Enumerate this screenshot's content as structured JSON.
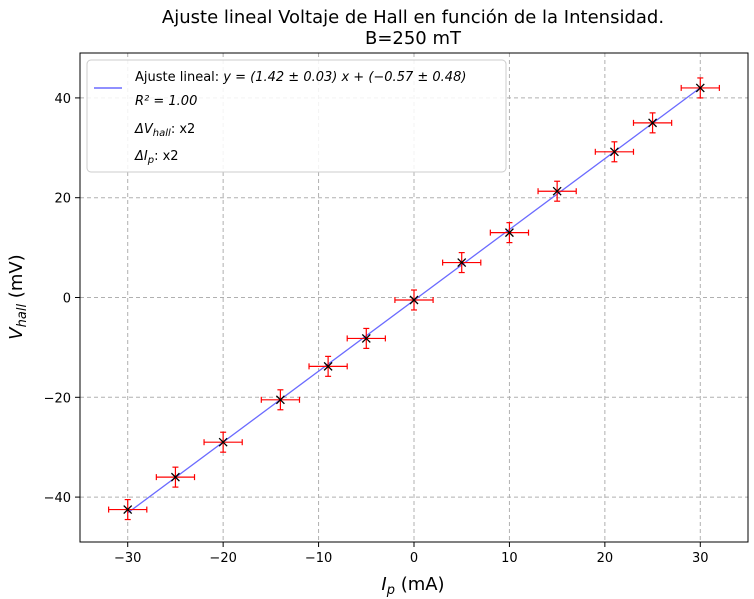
{
  "chart_data": {
    "type": "scatter",
    "title_line1": "Ajuste lineal Voltaje de Hall en función de la Intensidad.",
    "title_line2": "B=250 mT",
    "xlabel_main": "I",
    "xlabel_sub": "p",
    "xlabel_unit": " (mA)",
    "ylabel_main": "V",
    "ylabel_sub": "hall",
    "ylabel_unit": " (mV)",
    "xlim": [
      -35,
      35
    ],
    "ylim": [
      -49,
      49
    ],
    "xticks": [
      -30,
      -20,
      -10,
      0,
      10,
      20,
      30
    ],
    "yticks": [
      -40,
      -20,
      0,
      20,
      40
    ],
    "grid": true,
    "legend_position": "top-left",
    "fit": {
      "slope": 1.42,
      "intercept": -0.57,
      "color": "#6b6bff"
    },
    "points": {
      "x": [
        -30,
        -25,
        -20,
        -14,
        -9,
        -5,
        0,
        5,
        10,
        15,
        21,
        25,
        30
      ],
      "y": [
        -42.5,
        -36,
        -29,
        -20.5,
        -13.8,
        -8.2,
        -0.5,
        7,
        13,
        21.3,
        29.2,
        35,
        42
      ],
      "xerr": 2,
      "yerr": 2,
      "marker_color": "#000000",
      "errorbar_color": "#ff0000"
    },
    "legend": {
      "fit_label_prefix": "Ajuste lineal: ",
      "fit_label_eq": "y = (1.42 ± 0.03) x + (−0.57 ± 0.48)",
      "r2_label": "R² = 1.00",
      "dv_label": "ΔV",
      "dv_sub": "hall",
      "dv_value": ": x2",
      "di_label": "ΔI",
      "di_sub": "p",
      "di_value": ": x2"
    }
  }
}
